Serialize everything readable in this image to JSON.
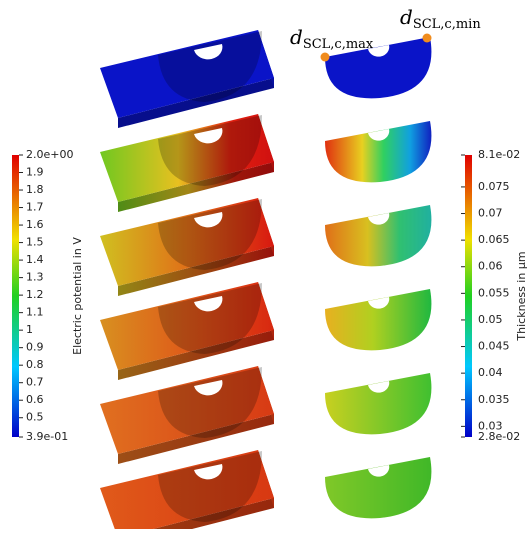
{
  "annotations": [
    {
      "symbol": "d",
      "subscript": "SCL,c,max"
    },
    {
      "symbol": "d",
      "subscript": "SCL,c,min"
    }
  ],
  "colorbars": [
    {
      "title": "Electric potential in V",
      "range": [
        0.39,
        2.0
      ],
      "ticks": [
        {
          "value": 2.0,
          "label": "2.0e+00"
        },
        1.9,
        1.8,
        1.7,
        1.6,
        1.5,
        1.4,
        1.3,
        1.2,
        1.1,
        1,
        0.9,
        0.8,
        0.7,
        0.6,
        0.5,
        {
          "value": 0.39,
          "label": "3.9e-01"
        }
      ]
    },
    {
      "title": "Thickness in μm",
      "range": [
        0.028,
        0.081
      ],
      "ticks": [
        {
          "value": 0.081,
          "label": "8.1e-02"
        },
        0.075,
        0.07,
        0.065,
        0.06,
        0.055,
        0.05,
        0.045,
        0.04,
        0.035,
        0.03,
        {
          "value": 0.028,
          "label": "2.8e-02"
        }
      ]
    }
  ]
}
